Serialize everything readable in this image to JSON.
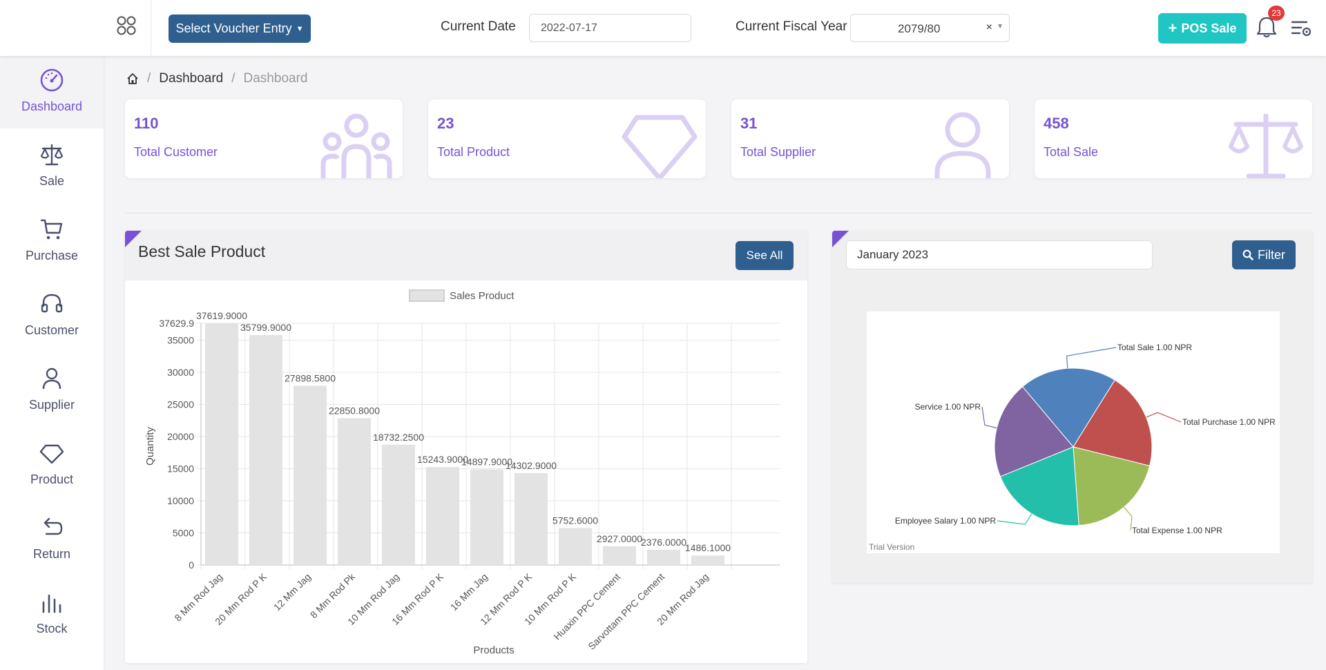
{
  "header": {
    "voucher_label": "Select Voucher Entry",
    "date_label": "Current Date",
    "date_value": "2022-07-17",
    "fy_label": "Current Fiscal Year",
    "fy_value": "2079/80",
    "clear_glyph": "×",
    "pos_label": "POS Sale",
    "notification_count": "23"
  },
  "sidebar": {
    "items": [
      {
        "label": "Dashboard",
        "icon": "gauge-icon",
        "active": true
      },
      {
        "label": "Sale",
        "icon": "scale-icon"
      },
      {
        "label": "Purchase",
        "icon": "cart-icon"
      },
      {
        "label": "Customer",
        "icon": "headset-icon"
      },
      {
        "label": "Supplier",
        "icon": "user-icon"
      },
      {
        "label": "Product",
        "icon": "diamond-icon"
      },
      {
        "label": "Return",
        "icon": "undo-icon"
      },
      {
        "label": "Stock",
        "icon": "bar-chart-icon"
      }
    ]
  },
  "breadcrumb": {
    "home_icon": "home-icon",
    "items": [
      "Dashboard",
      "Dashboard"
    ]
  },
  "stats": [
    {
      "value": "110",
      "label": "Total Customer",
      "icon": "users-icon"
    },
    {
      "value": "23",
      "label": "Total Product",
      "icon": "diamond-icon"
    },
    {
      "value": "31",
      "label": "Total Supplier",
      "icon": "user-icon"
    },
    {
      "value": "458",
      "label": "Total Sale",
      "icon": "scale-icon"
    }
  ],
  "best_sale": {
    "title": "Best Sale Product",
    "see_all_label": "See All"
  },
  "pie_panel": {
    "month_value": "January 2023",
    "filter_label": "Filter",
    "trial_text": "Trial Version"
  },
  "colors": {
    "accent": "#7752d4",
    "primary_button": "#2f5f8f",
    "pos_button": "#1fc6c4",
    "badge": "#e03a3a",
    "bar_fill": "#e3e3e3"
  },
  "chart_data": [
    {
      "type": "bar",
      "legend": [
        "Sales Product"
      ],
      "legend_position": "top",
      "xlabel": "Products",
      "ylabel": "Quantity",
      "ylim": [
        0,
        37629.9
      ],
      "y_ticks": [
        "37629.9",
        "35000",
        "30000",
        "25000",
        "20000",
        "15000",
        "10000",
        "5000",
        "0"
      ],
      "grid": true,
      "categories": [
        "8 Mm Rod Jag",
        "20 Mm Rod P K",
        "12 Mm Jag",
        "8 Mm Rod Pk",
        "10 Mm Rod Jag",
        "16 Mm Rod P K",
        "16 Mm Jag",
        "12 Mm Rod  P K",
        "10 Mm Rod P K",
        "Huaxin PPC Cement",
        "Sarvottam PPC Cement",
        "20 Mm Rod Jag"
      ],
      "series": [
        {
          "name": "Sales Product",
          "values": [
            37619.9,
            35799.9,
            27898.58,
            22850.8,
            18732.25,
            15243.9,
            14897.9,
            14302.9,
            5752.6,
            2927.0,
            2376.0,
            1486.1
          ]
        }
      ],
      "data_labels": [
        "37619.9000",
        "35799.9000",
        "27898.5800",
        "22850.8000",
        "18732.2500",
        "15243.9000",
        "14897.9000",
        "14302.9000",
        "5752.6000",
        "2927.0000",
        "2376.0000",
        "1486.1000"
      ]
    },
    {
      "type": "pie",
      "slices": [
        {
          "name": "Total Sale",
          "label": "Total Sale 1.00 NPR",
          "value": 1.0,
          "color": "#4f81bd"
        },
        {
          "name": "Total Purchase",
          "label": "Total Purchase 1.00 NPR",
          "value": 1.0,
          "color": "#c0504d"
        },
        {
          "name": "Total Expense",
          "label": "Total Expense 1.00 NPR",
          "value": 1.0,
          "color": "#9bbb59"
        },
        {
          "name": "Employee Salary",
          "label": "Employee Salary 1.00 NPR",
          "value": 1.0,
          "color": "#23bfaa"
        },
        {
          "name": "Service",
          "label": "Service  1.00 NPR",
          "value": 1.0,
          "color": "#8064a2"
        }
      ]
    }
  ]
}
